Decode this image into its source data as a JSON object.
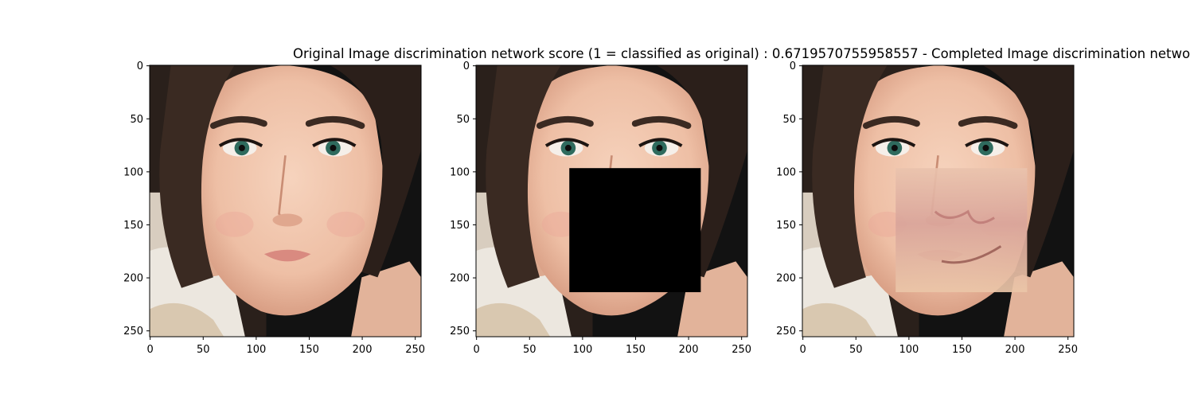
{
  "chart_data": {
    "type": "image-grid",
    "title": "Original Image discrimination network score (1 = classified as original) : 0.6719570755958557 - Completed Image discrimination netwo",
    "panels": [
      {
        "name": "original",
        "xlim": [
          0,
          255
        ],
        "ylim": [
          255,
          0
        ],
        "xticks": [
          0,
          50,
          100,
          150,
          200,
          250
        ],
        "yticks": [
          0,
          50,
          100,
          150,
          200,
          250
        ],
        "mask": null
      },
      {
        "name": "masked",
        "xlim": [
          0,
          255
        ],
        "ylim": [
          255,
          0
        ],
        "xticks": [
          0,
          50,
          100,
          150,
          200,
          250
        ],
        "yticks": [
          0,
          50,
          100,
          150,
          200,
          250
        ],
        "mask": {
          "x0": 88,
          "y0": 97,
          "x1": 212,
          "y1": 214,
          "fill": "#000000"
        }
      },
      {
        "name": "completed",
        "xlim": [
          0,
          255
        ],
        "ylim": [
          255,
          0
        ],
        "xticks": [
          0,
          50,
          100,
          150,
          200,
          250
        ],
        "yticks": [
          0,
          50,
          100,
          150,
          200,
          250
        ],
        "mask": {
          "x0": 88,
          "y0": 97,
          "x1": 212,
          "y1": 214,
          "fill": "inpainted"
        }
      }
    ]
  },
  "colors": {
    "background": "#ffffff",
    "hair": "#3a2a22",
    "skin": "#f0c6ae",
    "eye": "#2f6b5e",
    "mask": "#000000",
    "inpaint": "#e9bfae"
  }
}
